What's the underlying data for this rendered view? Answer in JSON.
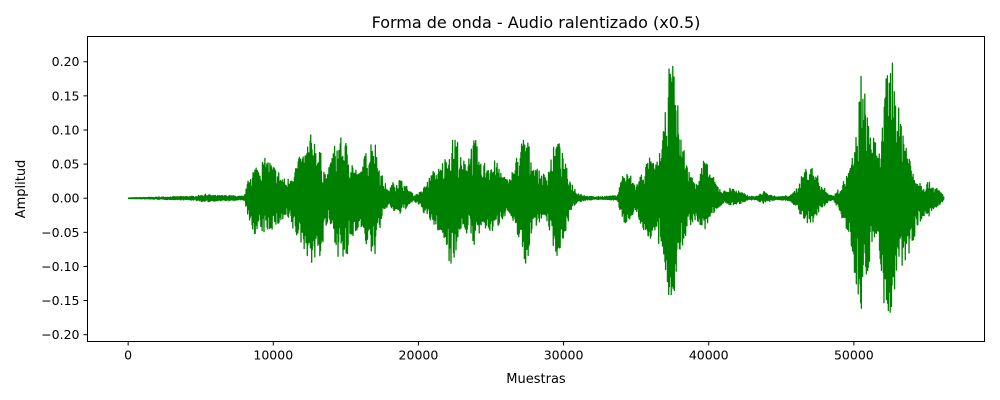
{
  "chart_data": {
    "type": "line",
    "title": "Forma de onda - Audio ralentizado (x0.5)",
    "xlabel": "Muestras",
    "ylabel": "Amplitud",
    "xlim": [
      -2800,
      59000
    ],
    "ylim": [
      -0.21,
      0.237
    ],
    "grid": false,
    "legend": "none",
    "color": "#008000",
    "x_ticks": [
      0,
      10000,
      20000,
      30000,
      40000,
      50000
    ],
    "x_tick_labels": [
      "0",
      "10000",
      "20000",
      "30000",
      "40000",
      "50000"
    ],
    "y_ticks": [
      -0.2,
      -0.15,
      -0.1,
      -0.05,
      0.0,
      0.05,
      0.1,
      0.15,
      0.2
    ],
    "y_tick_labels": [
      "−0.20",
      "−0.15",
      "−0.10",
      "−0.05",
      "0.00",
      "0.05",
      "0.10",
      "0.15",
      "0.20"
    ],
    "series": [
      {
        "envelope_x": [
          0,
          4600,
          5300,
          6000,
          7000,
          7700,
          8000,
          8200,
          8400,
          9000,
          9600,
          10400,
          10900,
          11500,
          12100,
          12700,
          13300,
          13700,
          14100,
          14500,
          15000,
          15400,
          15900,
          16400,
          16900,
          17400,
          17900,
          18300,
          18700,
          19300,
          19700,
          20200,
          20600,
          21000,
          21400,
          21800,
          22200,
          22600,
          23000,
          23500,
          23900,
          24300,
          24800,
          25300,
          25800,
          26200,
          26600,
          27000,
          27400,
          27800,
          28300,
          28800,
          29200,
          29600,
          30000,
          30500,
          31000,
          31600,
          32200,
          33000,
          33700,
          34100,
          34600,
          35000,
          35500,
          35900,
          36400,
          36900,
          37300,
          37600,
          37800,
          38100,
          38500,
          38900,
          39300,
          39700,
          40100,
          40600,
          41000,
          41400,
          41800,
          42300,
          42800,
          43300,
          43800,
          44200,
          44700,
          45200,
          45700,
          46200,
          46600,
          47000,
          47400,
          47800,
          48200,
          48600,
          49000,
          49400,
          49800,
          50200,
          50500,
          50800,
          51100,
          51400,
          51700,
          52000,
          52400,
          52800,
          53100,
          53400,
          53700,
          54000,
          54400,
          54800,
          55100,
          55400,
          55700,
          56000,
          56200
        ],
        "envelope_upper": [
          0.0005,
          0.003,
          0.006,
          0.004,
          0.004,
          0.003,
          0.003,
          0.02,
          0.04,
          0.055,
          0.06,
          0.04,
          0.025,
          0.05,
          0.07,
          0.1,
          0.065,
          0.03,
          0.075,
          0.09,
          0.085,
          0.06,
          0.035,
          0.07,
          0.1,
          0.04,
          0.012,
          0.025,
          0.03,
          0.015,
          0.004,
          0.01,
          0.025,
          0.04,
          0.045,
          0.06,
          0.08,
          0.1,
          0.05,
          0.075,
          0.09,
          0.05,
          0.06,
          0.055,
          0.04,
          0.025,
          0.05,
          0.08,
          0.1,
          0.06,
          0.04,
          0.035,
          0.07,
          0.09,
          0.06,
          0.025,
          0.008,
          0.003,
          0.002,
          0.003,
          0.004,
          0.04,
          0.035,
          0.02,
          0.045,
          0.06,
          0.05,
          0.1,
          0.2,
          0.2,
          0.15,
          0.1,
          0.05,
          0.03,
          0.035,
          0.06,
          0.04,
          0.02,
          0.01,
          0.015,
          0.015,
          0.008,
          0.003,
          0.003,
          0.01,
          0.005,
          0.002,
          0.003,
          0.005,
          0.02,
          0.045,
          0.05,
          0.038,
          0.02,
          0.008,
          0.003,
          0.015,
          0.03,
          0.05,
          0.1,
          0.19,
          0.15,
          0.12,
          0.09,
          0.06,
          0.12,
          0.22,
          0.2,
          0.13,
          0.12,
          0.08,
          0.05,
          0.03,
          0.02,
          0.025,
          0.02,
          0.015,
          0.01,
          0.003
        ],
        "envelope_lower": [
          -0.0005,
          -0.003,
          -0.006,
          -0.004,
          -0.004,
          -0.003,
          -0.003,
          -0.02,
          -0.05,
          -0.055,
          -0.05,
          -0.04,
          -0.03,
          -0.055,
          -0.075,
          -0.1,
          -0.085,
          -0.04,
          -0.05,
          -0.09,
          -0.1,
          -0.065,
          -0.04,
          -0.07,
          -0.095,
          -0.04,
          -0.01,
          -0.02,
          -0.025,
          -0.012,
          -0.004,
          -0.015,
          -0.03,
          -0.04,
          -0.05,
          -0.065,
          -0.1,
          -0.08,
          -0.04,
          -0.06,
          -0.07,
          -0.05,
          -0.05,
          -0.05,
          -0.03,
          -0.02,
          -0.05,
          -0.06,
          -0.11,
          -0.05,
          -0.035,
          -0.03,
          -0.065,
          -0.09,
          -0.06,
          -0.02,
          -0.006,
          -0.003,
          -0.002,
          -0.002,
          -0.003,
          -0.04,
          -0.03,
          -0.02,
          -0.05,
          -0.06,
          -0.06,
          -0.1,
          -0.15,
          -0.15,
          -0.12,
          -0.08,
          -0.05,
          -0.035,
          -0.04,
          -0.05,
          -0.03,
          -0.015,
          -0.008,
          -0.01,
          -0.01,
          -0.007,
          -0.003,
          -0.003,
          -0.008,
          -0.005,
          -0.002,
          -0.003,
          -0.005,
          -0.02,
          -0.04,
          -0.045,
          -0.03,
          -0.015,
          -0.006,
          -0.003,
          -0.02,
          -0.04,
          -0.08,
          -0.13,
          -0.17,
          -0.13,
          -0.09,
          -0.07,
          -0.06,
          -0.15,
          -0.19,
          -0.15,
          -0.12,
          -0.1,
          -0.09,
          -0.07,
          -0.04,
          -0.03,
          -0.03,
          -0.02,
          -0.015,
          -0.01,
          -0.003
        ]
      }
    ]
  }
}
